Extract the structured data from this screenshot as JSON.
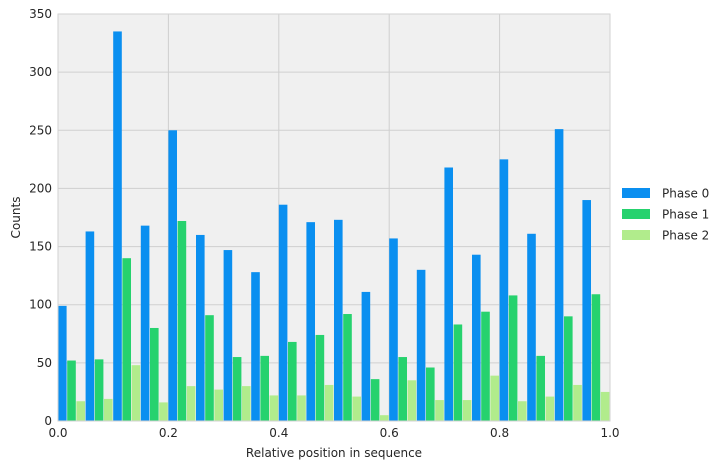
{
  "chart_data": {
    "type": "bar",
    "xlabel": "Relative position in sequence",
    "ylabel": "Counts",
    "xlim": [
      0.0,
      1.0
    ],
    "ylim": [
      0,
      350
    ],
    "grid": true,
    "legend_placement": "right",
    "bin_width": 0.05,
    "bin_starts": [
      0.0,
      0.05,
      0.1,
      0.15,
      0.2,
      0.25,
      0.3,
      0.35,
      0.4,
      0.45,
      0.5,
      0.55,
      0.6,
      0.65,
      0.7,
      0.75,
      0.8,
      0.85,
      0.9,
      0.95
    ],
    "x_ticks": [
      "0.0",
      "0.2",
      "0.4",
      "0.6",
      "0.8",
      "1.0"
    ],
    "x_tick_values": [
      0.0,
      0.2,
      0.4,
      0.6,
      0.8,
      1.0
    ],
    "y_ticks": [
      "0",
      "50",
      "100",
      "150",
      "200",
      "250",
      "300",
      "350"
    ],
    "y_tick_values": [
      0,
      50,
      100,
      150,
      200,
      250,
      300,
      350
    ],
    "series": [
      {
        "name": "Phase 0",
        "color": "#0a8ff0",
        "values": [
          99,
          163,
          335,
          168,
          250,
          160,
          147,
          128,
          186,
          171,
          173,
          111,
          157,
          130,
          218,
          143,
          225,
          161,
          251,
          190
        ]
      },
      {
        "name": "Phase 1",
        "color": "#26d26e",
        "values": [
          52,
          53,
          140,
          80,
          172,
          91,
          55,
          56,
          68,
          74,
          92,
          36,
          55,
          46,
          83,
          94,
          108,
          56,
          90,
          109
        ]
      },
      {
        "name": "Phase 2",
        "color": "#b1ec8c",
        "values": [
          17,
          19,
          48,
          16,
          30,
          27,
          30,
          22,
          22,
          31,
          21,
          5,
          35,
          18,
          18,
          39,
          17,
          21,
          31,
          25
        ]
      }
    ]
  }
}
